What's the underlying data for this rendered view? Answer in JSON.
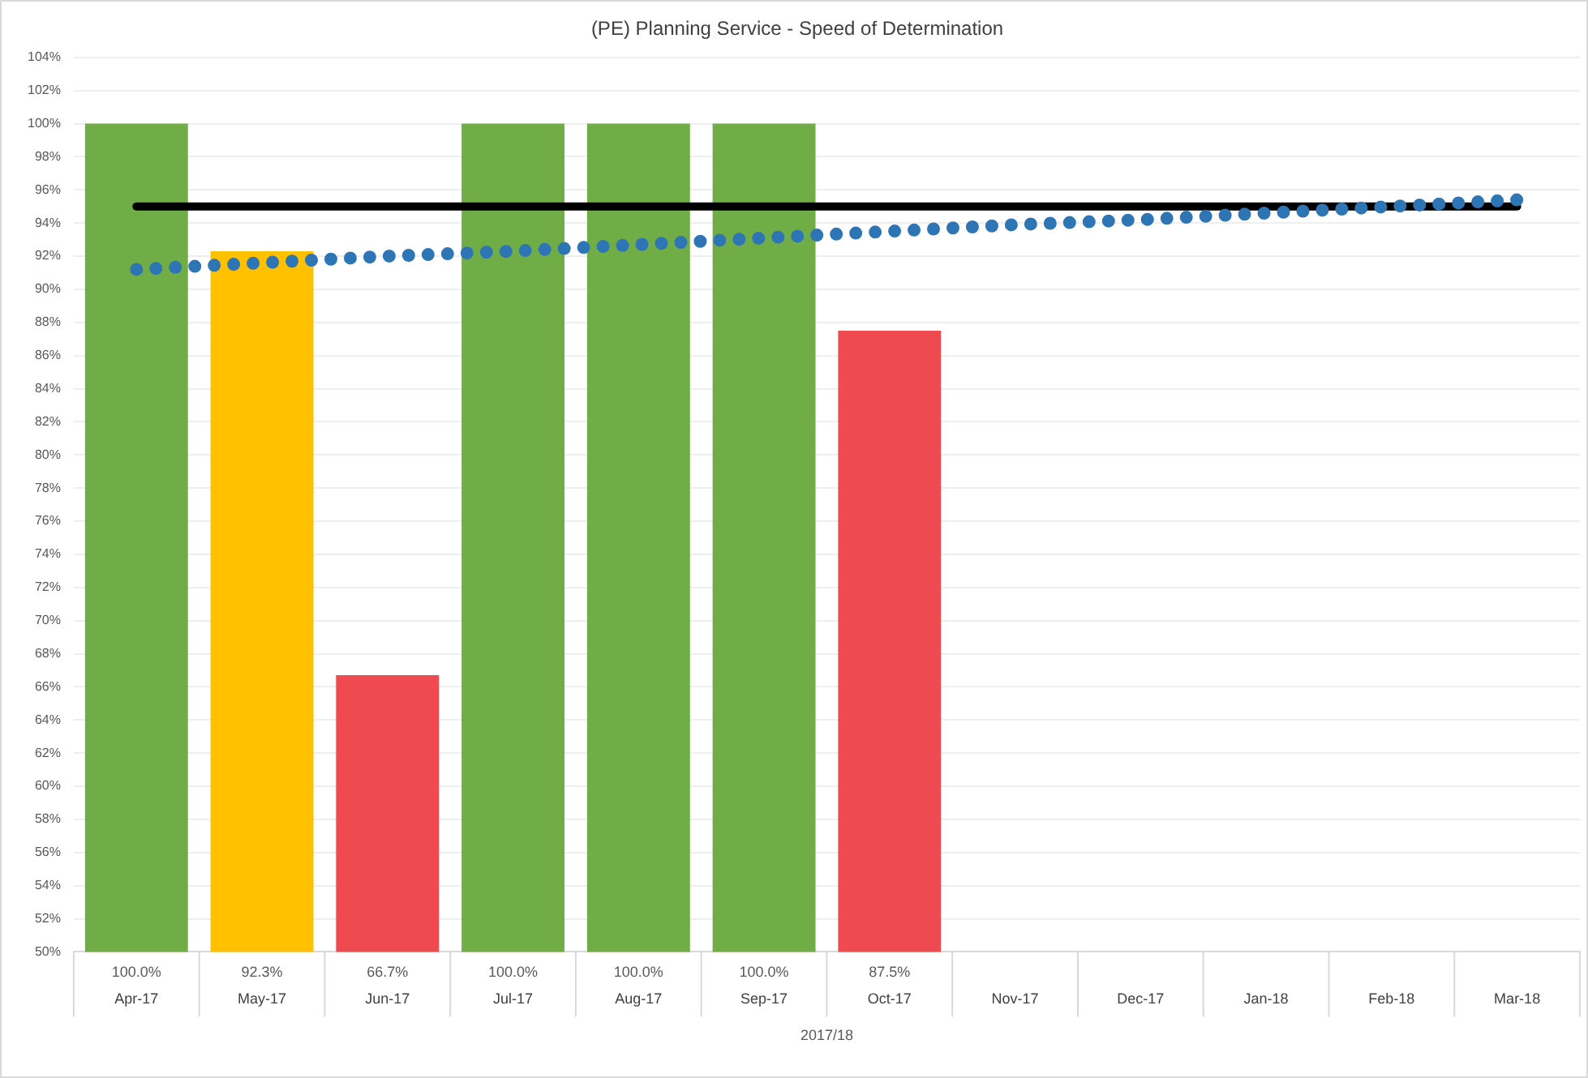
{
  "chart_data": {
    "type": "bar",
    "title": "(PE) Planning Service - Speed of Determination",
    "xlabel": "2017/18",
    "categories": [
      "Apr-17",
      "May-17",
      "Jun-17",
      "Jul-17",
      "Aug-17",
      "Sep-17",
      "Oct-17",
      "Nov-17",
      "Dec-17",
      "Jan-18",
      "Feb-18",
      "Mar-18"
    ],
    "series": [
      {
        "values": [
          100,
          92.3,
          66.7,
          100,
          100,
          100,
          87.5,
          null,
          null,
          null,
          null,
          null
        ],
        "colors": [
          "#70ad47",
          "#ffc000",
          "#ef4a4f",
          "#70ad47",
          "#70ad47",
          "#70ad47",
          "#ef4a4f",
          null,
          null,
          null,
          null,
          null
        ],
        "value_labels": [
          "100.0%",
          "92.3%",
          "66.7%",
          "100.0%",
          "100.0%",
          "100.0%",
          "87.5%",
          null,
          null,
          null,
          null,
          null
        ]
      },
      {
        "type": "line",
        "color": "#000000",
        "line_style": "solid",
        "values": [
          95,
          95,
          95,
          95,
          95,
          95,
          95,
          95,
          95,
          95,
          95,
          95
        ]
      },
      {
        "type": "line",
        "color": "#2e75b6",
        "line_style": "dotted",
        "values": [
          91.2,
          91.6,
          92.0,
          92.3,
          92.7,
          93.1,
          93.5,
          93.9,
          94.2,
          94.6,
          95.0,
          95.4
        ]
      }
    ],
    "ylim": [
      50,
      104
    ],
    "yticks": [
      {
        "value": 50,
        "label": "50%"
      },
      {
        "value": 52,
        "label": "52%"
      },
      {
        "value": 54,
        "label": "54%"
      },
      {
        "value": 56,
        "label": "56%"
      },
      {
        "value": 58,
        "label": "58%"
      },
      {
        "value": 60,
        "label": "60%"
      },
      {
        "value": 62,
        "label": "62%"
      },
      {
        "value": 64,
        "label": "64%"
      },
      {
        "value": 66,
        "label": "66%"
      },
      {
        "value": 68,
        "label": "68%"
      },
      {
        "value": 70,
        "label": "70%"
      },
      {
        "value": 72,
        "label": "72%"
      },
      {
        "value": 74,
        "label": "74%"
      },
      {
        "value": 76,
        "label": "76%"
      },
      {
        "value": 78,
        "label": "78%"
      },
      {
        "value": 80,
        "label": "80%"
      },
      {
        "value": 82,
        "label": "82%"
      },
      {
        "value": 84,
        "label": "84%"
      },
      {
        "value": 86,
        "label": "86%"
      },
      {
        "value": 88,
        "label": "88%"
      },
      {
        "value": 90,
        "label": "90%"
      },
      {
        "value": 92,
        "label": "92%"
      },
      {
        "value": 94,
        "label": "94%"
      },
      {
        "value": 96,
        "label": "96%"
      },
      {
        "value": 98,
        "label": "98%"
      },
      {
        "value": 100,
        "label": "100%"
      },
      {
        "value": 102,
        "label": "102%"
      },
      {
        "value": 104,
        "label": "104%"
      }
    ],
    "grid": "y",
    "legend": false,
    "marker": "none"
  }
}
